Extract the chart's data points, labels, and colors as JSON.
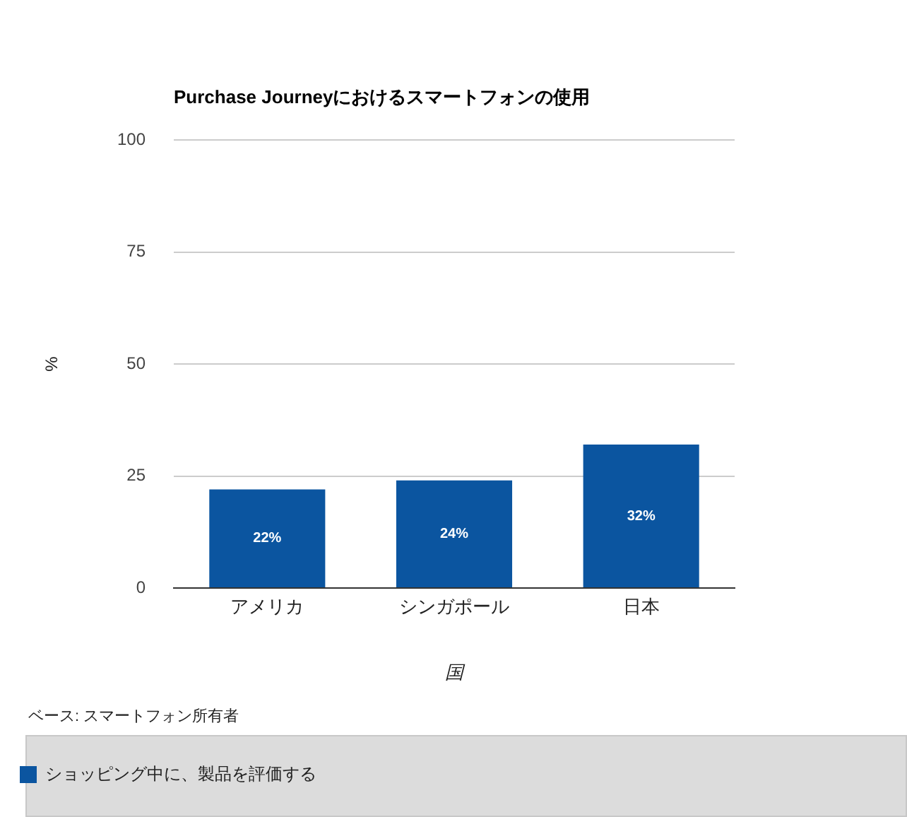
{
  "chart_data": {
    "type": "bar",
    "title": "Purchase Journeyにおけるスマートフォンの使用",
    "xlabel": "国",
    "ylabel": "%",
    "categories": [
      "アメリカ",
      "シンガポール",
      "日本"
    ],
    "series": [
      {
        "name": "ショッピング中に、製品を評価する",
        "color": "#0b55a0",
        "values": [
          22,
          24,
          32
        ],
        "value_labels": [
          "22%",
          "24%",
          "32%"
        ]
      }
    ],
    "ylim": [
      0,
      100
    ],
    "yticks": [
      0,
      25,
      50,
      75,
      100
    ],
    "grid": "y",
    "legend": "bottom",
    "annotations": [
      "ベース: スマートフォン所有者"
    ]
  }
}
